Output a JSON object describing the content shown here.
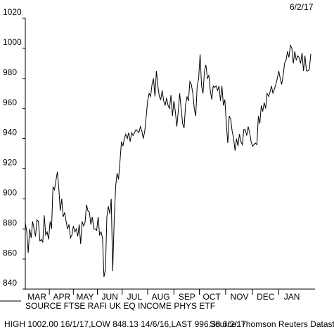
{
  "chart_data": {
    "type": "line",
    "date": "6/2/17",
    "source_label": "SOURCE FTSE RAFI UK EQ INCOME PHYS ETF",
    "stats": "HIGH 1002.00 16/1/17,LOW 848.13 14/6/16,LAST 996.38 6/2/17",
    "credit": "Source: Thomson Reuters Datastream",
    "color": "#000000",
    "xlim": [
      0,
      196
    ],
    "xticks": [
      {
        "value": 8,
        "label": "MAR"
      },
      {
        "value": 25,
        "label": "APR"
      },
      {
        "value": 41,
        "label": "MAY"
      },
      {
        "value": 58,
        "label": "JUN"
      },
      {
        "value": 75,
        "label": "JUL"
      },
      {
        "value": 93,
        "label": "AUG"
      },
      {
        "value": 111,
        "label": "SEP"
      },
      {
        "value": 128,
        "label": "OCT"
      },
      {
        "value": 147,
        "label": "NOV"
      },
      {
        "value": 165,
        "label": "DEC"
      },
      {
        "value": 183,
        "label": "JAN"
      }
    ],
    "ylim": [
      840,
      1020
    ],
    "yticks": [
      840,
      860,
      880,
      900,
      920,
      940,
      960,
      980,
      1000,
      1020
    ],
    "values": [
      884,
      878,
      864,
      880,
      874,
      885,
      880,
      875,
      886,
      885,
      872,
      873,
      871,
      889,
      876,
      878,
      873,
      885,
      880,
      908,
      906,
      912,
      918,
      907,
      892,
      900,
      888,
      891,
      885,
      880,
      883,
      874,
      876,
      882,
      878,
      880,
      875,
      883,
      870,
      885,
      882,
      884,
      896,
      892,
      891,
      883,
      888,
      880,
      880,
      879,
      888,
      876,
      878,
      874,
      848,
      853,
      888,
      895,
      890,
      900,
      852,
      885,
      908,
      917,
      913,
      925,
      938,
      935,
      940,
      943,
      940,
      944,
      938,
      944,
      942,
      944,
      946,
      945,
      944,
      948,
      945,
      940,
      945,
      955,
      965,
      970,
      968,
      976,
      980,
      968,
      985,
      975,
      968,
      966,
      972,
      965,
      962,
      967,
      962,
      960,
      969,
      955,
      965,
      958,
      948,
      958,
      970,
      960,
      950,
      947,
      962,
      968,
      965,
      978,
      976,
      970,
      960,
      955,
      975,
      980,
      996,
      975,
      970,
      985,
      989,
      980,
      982,
      972,
      966,
      975,
      974,
      975,
      972,
      975,
      965,
      975,
      962,
      966,
      950,
      937,
      955,
      953,
      945,
      940,
      932,
      940,
      935,
      943,
      938,
      936,
      946,
      946,
      942,
      948,
      944,
      938,
      935,
      936,
      937,
      936,
      955,
      950,
      962,
      958,
      964,
      960,
      970,
      968,
      971,
      975,
      970,
      973,
      976,
      980,
      985,
      980,
      976,
      982,
      990,
      992,
      998,
      994,
      1002,
      1000,
      990,
      998,
      992,
      995,
      994,
      990,
      997,
      985,
      995,
      985,
      985,
      986,
      996.38
    ]
  }
}
